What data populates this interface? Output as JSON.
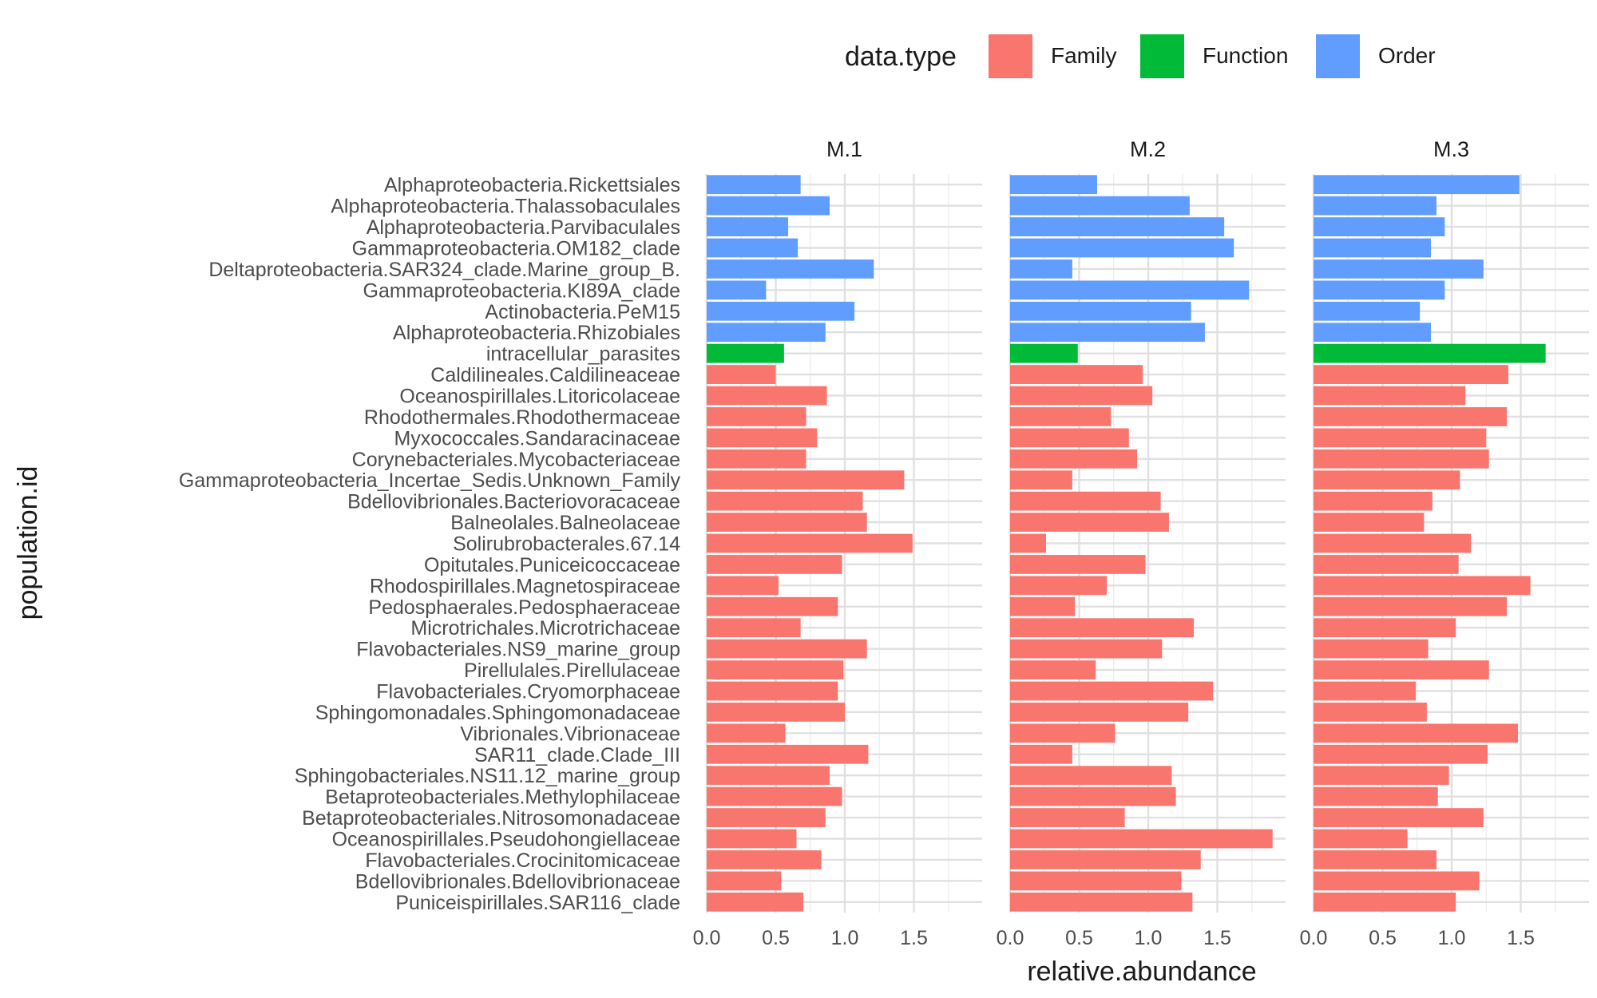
{
  "chart_data": {
    "type": "bar",
    "orientation": "horizontal",
    "facet_by": "panel",
    "xlabel": "relative.abundance",
    "ylabel": "population.id",
    "xlim": [
      0,
      2
    ],
    "x_ticks": [
      "0.0",
      "0.5",
      "1.0",
      "1.5"
    ],
    "grid": true,
    "legend": {
      "title": "data.type",
      "position": "top-right",
      "entries": [
        {
          "label": "Family",
          "color": "#F8766D"
        },
        {
          "label": "Function",
          "color": "#00BA38"
        },
        {
          "label": "Order",
          "color": "#619CFF"
        }
      ]
    },
    "panels": [
      "M.1",
      "M.2",
      "M.3"
    ],
    "categories": [
      {
        "name": "Alphaproteobacteria.Rickettsiales",
        "type": "Order",
        "values": [
          0.68,
          0.63,
          1.49
        ]
      },
      {
        "name": "Alphaproteobacteria.Thalassobaculales",
        "type": "Order",
        "values": [
          0.89,
          1.3,
          0.89
        ]
      },
      {
        "name": "Alphaproteobacteria.Parvibaculales",
        "type": "Order",
        "values": [
          0.59,
          1.55,
          0.95
        ]
      },
      {
        "name": "Gammaproteobacteria.OM182_clade",
        "type": "Order",
        "values": [
          0.66,
          1.62,
          0.85
        ]
      },
      {
        "name": "Deltaproteobacteria.SAR324_clade.Marine_group_B.",
        "type": "Order",
        "values": [
          1.21,
          0.45,
          1.23
        ]
      },
      {
        "name": "Gammaproteobacteria.KI89A_clade",
        "type": "Order",
        "values": [
          0.43,
          1.73,
          0.95
        ]
      },
      {
        "name": "Actinobacteria.PeM15",
        "type": "Order",
        "values": [
          1.07,
          1.31,
          0.77
        ]
      },
      {
        "name": "Alphaproteobacteria.Rhizobiales",
        "type": "Order",
        "values": [
          0.86,
          1.41,
          0.85
        ]
      },
      {
        "name": "intracellular_parasites",
        "type": "Function",
        "values": [
          0.56,
          0.49,
          1.68
        ]
      },
      {
        "name": "Caldilineales.Caldilineaceae",
        "type": "Family",
        "values": [
          0.5,
          0.96,
          1.41
        ]
      },
      {
        "name": "Oceanospirillales.Litoricolaceae",
        "type": "Family",
        "values": [
          0.87,
          1.03,
          1.1
        ]
      },
      {
        "name": "Rhodothermales.Rhodothermaceae",
        "type": "Family",
        "values": [
          0.72,
          0.73,
          1.4
        ]
      },
      {
        "name": "Myxococcales.Sandaracinaceae",
        "type": "Family",
        "values": [
          0.8,
          0.86,
          1.25
        ]
      },
      {
        "name": "Corynebacteriales.Mycobacteriaceae",
        "type": "Family",
        "values": [
          0.72,
          0.92,
          1.27
        ]
      },
      {
        "name": "Gammaproteobacteria_Incertae_Sedis.Unknown_Family",
        "type": "Family",
        "values": [
          1.43,
          0.45,
          1.06
        ]
      },
      {
        "name": "Bdellovibrionales.Bacteriovoracaceae",
        "type": "Family",
        "values": [
          1.13,
          1.09,
          0.86
        ]
      },
      {
        "name": "Balneolales.Balneolaceae",
        "type": "Family",
        "values": [
          1.16,
          1.15,
          0.8
        ]
      },
      {
        "name": "Solirubrobacterales.67.14",
        "type": "Family",
        "values": [
          1.49,
          0.26,
          1.14
        ]
      },
      {
        "name": "Opitutales.Puniceicoccaceae",
        "type": "Family",
        "values": [
          0.98,
          0.98,
          1.05
        ]
      },
      {
        "name": "Rhodospirillales.Magnetospiraceae",
        "type": "Family",
        "values": [
          0.52,
          0.7,
          1.57
        ]
      },
      {
        "name": "Pedosphaerales.Pedosphaeraceae",
        "type": "Family",
        "values": [
          0.95,
          0.47,
          1.4
        ]
      },
      {
        "name": "Microtrichales.Microtrichaceae",
        "type": "Family",
        "values": [
          0.68,
          1.33,
          1.03
        ]
      },
      {
        "name": "Flavobacteriales.NS9_marine_group",
        "type": "Family",
        "values": [
          1.16,
          1.1,
          0.83
        ]
      },
      {
        "name": "Pirellulales.Pirellulaceae",
        "type": "Family",
        "values": [
          0.99,
          0.62,
          1.27
        ]
      },
      {
        "name": "Flavobacteriales.Cryomorphaceae",
        "type": "Family",
        "values": [
          0.95,
          1.47,
          0.74
        ]
      },
      {
        "name": "Sphingomonadales.Sphingomonadaceae",
        "type": "Family",
        "values": [
          1.0,
          1.29,
          0.82
        ]
      },
      {
        "name": "Vibrionales.Vibrionaceae",
        "type": "Family",
        "values": [
          0.57,
          0.76,
          1.48
        ]
      },
      {
        "name": "SAR11_clade.Clade_III",
        "type": "Family",
        "values": [
          1.17,
          0.45,
          1.26
        ]
      },
      {
        "name": "Sphingobacteriales.NS11.12_marine_group",
        "type": "Family",
        "values": [
          0.89,
          1.17,
          0.98
        ]
      },
      {
        "name": "Betaproteobacteriales.Methylophilaceae",
        "type": "Family",
        "values": [
          0.98,
          1.2,
          0.9
        ]
      },
      {
        "name": "Betaproteobacteriales.Nitrosomonadaceae",
        "type": "Family",
        "values": [
          0.86,
          0.83,
          1.23
        ]
      },
      {
        "name": "Oceanospirillales.Pseudohongiellaceae",
        "type": "Family",
        "values": [
          0.65,
          1.9,
          0.68
        ]
      },
      {
        "name": "Flavobacteriales.Crocinitomicaceae",
        "type": "Family",
        "values": [
          0.83,
          1.38,
          0.89
        ]
      },
      {
        "name": "Bdellovibrionales.Bdellovibrionaceae",
        "type": "Family",
        "values": [
          0.54,
          1.24,
          1.2
        ]
      },
      {
        "name": "Puniceispirillales.SAR116_clade",
        "type": "Family",
        "values": [
          0.7,
          1.32,
          1.03
        ]
      }
    ]
  }
}
